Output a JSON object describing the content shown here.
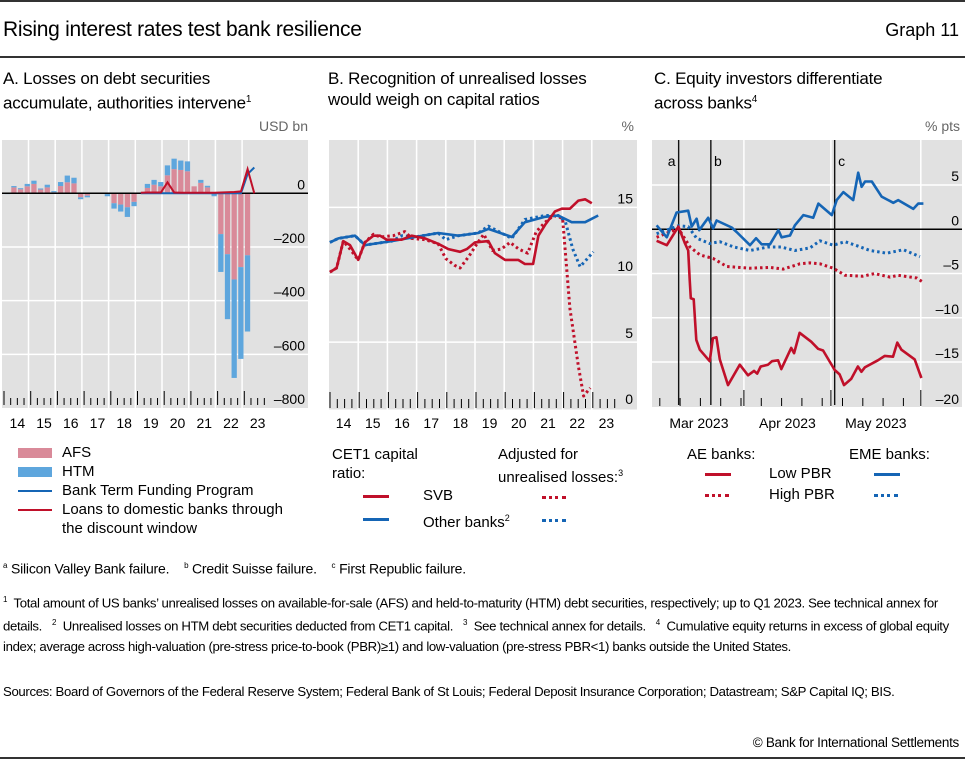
{
  "header": {
    "title": "Rising interest rates test bank resilience",
    "graph_number": "Graph 11"
  },
  "panels": {
    "a": {
      "title_line1": "A. Losses on debt securities",
      "title_line2": "accumulate, authorities intervene",
      "title_sup": "1",
      "unit": "USD bn"
    },
    "b": {
      "title_line1": "B. Recognition of unrealised losses",
      "title_line2": "would weigh on capital ratios",
      "unit": "%"
    },
    "c": {
      "title_line1": "C. Equity investors differentiate",
      "title_line2": "across banks",
      "title_sup": "4",
      "unit": "% pts"
    }
  },
  "legends": {
    "a": {
      "afs": "AFS",
      "htm": "HTM",
      "btfp": "Bank Term Funding Program",
      "dw_line1": "Loans to domestic banks through",
      "dw_line2": "the discount window"
    },
    "b": {
      "cet1_line1": "CET1 capital",
      "cet1_line2": "ratio:",
      "adj_line1": "Adjusted for",
      "adj_line2": "unrealised losses:",
      "adj_sup": "3",
      "svb": "SVB",
      "other": "Other banks",
      "other_sup": "2"
    },
    "c": {
      "ae": "AE banks:",
      "eme": "EME banks:",
      "low": "Low PBR",
      "high": "High PBR"
    }
  },
  "event_notes": {
    "a_mark": "a",
    "a_text": "Silicon Valley Bank failure.",
    "b_mark": "b",
    "b_text": "Credit Suisse failure.",
    "c_mark": "c",
    "c_text": "First Republic failure."
  },
  "footnotes": {
    "f1": "Total amount of US banks’ unrealised losses on available-for-sale (AFS) and held-to-maturity (HTM) debt securities, respectively; up to Q1 2023. See technical annex for details.",
    "f2": "Unrealised losses on HTM debt securities deducted from CET1 capital.",
    "f3": "See technical annex for details.",
    "f4": "Cumulative equity returns in excess of global equity index; average across high-valuation (pre-stress price-to-book (PBR)≥1) and low-valuation (pre-stress PBR<1) banks outside the United States.",
    "sources": "Sources: Board of Governors of the Federal Reserve System; Federal Bank of St Louis; Federal Deposit Insurance Corporation; Datastream; S&P Capital IQ; BIS."
  },
  "copyright": "© Bank for International Settlements",
  "colors": {
    "afs": "#d98a99",
    "htm": "#5ea6dd",
    "red": "#c0102a",
    "blue": "#1565b5",
    "plot_bg": "#e1e1e1",
    "grid": "#ffffff"
  },
  "chart_data": [
    {
      "id": "a",
      "type": "bar",
      "title": "A. Losses on debt securities accumulate, authorities intervene",
      "ylabel": "USD bn",
      "ylim": [
        -800,
        150
      ],
      "yticks": [
        0,
        -200,
        -400,
        -600,
        -800
      ],
      "ytick_labels": [
        "0",
        "–200",
        "–400",
        "–600",
        "–800"
      ],
      "x_start_year": 2014,
      "xtick_labels": [
        "14",
        "15",
        "16",
        "17",
        "18",
        "19",
        "20",
        "21",
        "22",
        "23"
      ],
      "grid": true,
      "stacked": true,
      "categories_note": "Quarterly, 2014 Q1 to 2023 Q1",
      "series": [
        {
          "name": "AFS",
          "kind": "bar",
          "values": [
            -1,
            22,
            15,
            26,
            35,
            14,
            22,
            4,
            27,
            41,
            37,
            -15,
            -9,
            0,
            2,
            -3,
            -37,
            -42,
            -52,
            -32,
            2,
            20,
            32,
            26,
            67,
            90,
            87,
            82,
            26,
            39,
            22,
            -2,
            -152,
            -227,
            -321,
            -275,
            -231
          ]
        },
        {
          "name": "HTM",
          "kind": "bar",
          "values": [
            -2,
            5,
            4,
            9,
            12,
            4,
            10,
            4,
            15,
            25,
            21,
            -7,
            -6,
            0,
            0,
            -8,
            -20,
            -26,
            -36,
            -16,
            1,
            15,
            18,
            16,
            37,
            39,
            35,
            37,
            0,
            11,
            6,
            -9,
            -141,
            -242,
            -367,
            -342,
            -284
          ]
        },
        {
          "name": "Bank Term Funding Program",
          "kind": "line",
          "start_index": 20,
          "values": [
            0,
            0,
            0,
            0,
            0,
            0,
            0,
            0,
            0,
            0,
            0,
            0,
            0,
            0,
            0,
            0,
            72,
            96
          ]
        },
        {
          "name": "Loans to domestic banks through the discount window",
          "kind": "line",
          "start_index": 20,
          "values": [
            2,
            3,
            3,
            3,
            41,
            3,
            2,
            2,
            2,
            2,
            2,
            2,
            3,
            4,
            5,
            7,
            90,
            0
          ]
        }
      ]
    },
    {
      "id": "b",
      "type": "line",
      "title": "B. Recognition of unrealised losses would weigh on capital ratios",
      "ylabel": "%",
      "ylim": [
        0,
        20
      ],
      "yticks": [
        0,
        5,
        10,
        15
      ],
      "xlim": [
        2014,
        2024
      ],
      "xtick_labels": [
        "14",
        "15",
        "16",
        "17",
        "18",
        "19",
        "20",
        "21",
        "22",
        "23"
      ],
      "grid": true,
      "series": [
        {
          "name": "SVB",
          "style": "solid",
          "color": "red",
          "x": [
            2014.03,
            2014.26,
            2014.49,
            2014.72,
            2015.0,
            2015.23,
            2015.52,
            2015.75,
            2015.98,
            2016.49,
            2016.83,
            2017.29,
            2017.74,
            2018.09,
            2018.49,
            2018.72,
            2019.0,
            2019.46,
            2019.68,
            2020.03,
            2020.48,
            2020.71,
            2020.99,
            2021.17,
            2021.4,
            2021.74,
            2021.97,
            2022.25,
            2022.54,
            2022.77,
            2023.0
          ],
          "y": [
            10.2,
            10.5,
            12.5,
            12.2,
            11.1,
            12.4,
            12.9,
            12.9,
            12.6,
            12.6,
            12.9,
            12.7,
            12.3,
            11.9,
            11.7,
            11.9,
            12.4,
            12.5,
            11.6,
            11.1,
            11.1,
            10.8,
            10.8,
            12.9,
            13.7,
            14.7,
            14.9,
            14.9,
            15.5,
            15.6,
            15.3
          ]
        },
        {
          "name": "Other banks",
          "style": "solid",
          "color": "blue",
          "x": [
            2014.03,
            2014.32,
            2014.89,
            2015.23,
            2016.15,
            2016.95,
            2017.74,
            2018.43,
            2019.11,
            2019.46,
            2020.26,
            2020.71,
            2021.4,
            2021.85,
            2022.31,
            2022.77,
            2023.22
          ],
          "y": [
            12.4,
            12.7,
            12.9,
            12.2,
            12.5,
            12.8,
            13.1,
            12.9,
            13.1,
            13.4,
            12.8,
            13.9,
            14.3,
            14.4,
            13.9,
            13.9,
            14.4
          ]
        },
        {
          "name": "SVB adjusted for unrealised losses",
          "style": "dotted",
          "color": "red",
          "x": [
            2014.03,
            2014.26,
            2014.49,
            2014.72,
            2015.0,
            2015.23,
            2015.52,
            2015.75,
            2016.2,
            2016.6,
            2016.83,
            2017.29,
            2017.74,
            2018.0,
            2018.3,
            2018.49,
            2018.8,
            2019.1,
            2019.3,
            2019.6,
            2019.9,
            2020.2,
            2020.5,
            2020.8,
            2021.1,
            2021.4,
            2021.7,
            2022.0,
            2022.25,
            2022.54,
            2022.72,
            2022.95
          ],
          "y": [
            10.2,
            10.5,
            12.5,
            11.9,
            11.1,
            12.4,
            13.0,
            12.8,
            12.9,
            13.2,
            12.7,
            12.6,
            12.3,
            11.2,
            10.7,
            10.5,
            11.4,
            12.4,
            13.0,
            11.8,
            11.9,
            12.4,
            11.9,
            11.6,
            13.2,
            13.9,
            14.4,
            14.2,
            7.5,
            3.2,
            1.0,
            1.6
          ]
        },
        {
          "name": "Other banks adjusted for unrealised losses",
          "style": "dotted",
          "color": "blue",
          "x": [
            2014.03,
            2014.32,
            2014.89,
            2015.23,
            2016.15,
            2016.5,
            2016.95,
            2017.74,
            2018.0,
            2018.43,
            2019.11,
            2019.46,
            2020.26,
            2020.71,
            2021.4,
            2021.85,
            2022.1,
            2022.35,
            2022.6,
            2022.85,
            2023.05
          ],
          "y": [
            12.4,
            12.7,
            12.9,
            12.2,
            12.5,
            12.9,
            12.8,
            13.1,
            12.6,
            12.9,
            13.1,
            13.6,
            12.7,
            14.1,
            14.4,
            14.4,
            13.9,
            11.9,
            10.6,
            11.2,
            11.7
          ]
        }
      ]
    },
    {
      "id": "c",
      "type": "line",
      "title": "C. Equity investors differentiate across banks",
      "ylabel": "% pts",
      "ylim": [
        -20,
        10
      ],
      "yticks": [
        5,
        0,
        -5,
        -10,
        -15,
        -20
      ],
      "ytick_labels": [
        "5",
        "0",
        "–5",
        "–10",
        "–15",
        "–20"
      ],
      "x_unit": "days since 1 Mar 2023",
      "xlim": [
        0,
        106
      ],
      "xtick_labels": [
        "Mar 2023",
        "Apr 2023",
        "May 2023"
      ],
      "month_starts": [
        0,
        31,
        61,
        92
      ],
      "events": [
        {
          "label": "a",
          "day": 8.5
        },
        {
          "label": "b",
          "day": 19.6
        },
        {
          "label": "c",
          "day": 62.3
        }
      ],
      "grid": true,
      "series": [
        {
          "name": "AE banks Low PBR",
          "style": "solid",
          "color": "red",
          "x": [
            0.9,
            4.4,
            8.4,
            10.7,
            11.8,
            12.3,
            12.7,
            13.7,
            14.6,
            15.8,
            19.2,
            20.3,
            21.5,
            22.7,
            25.5,
            29.6,
            32.4,
            34.5,
            35.6,
            36.8,
            39.3,
            40.7,
            42.8,
            43.9,
            47.3,
            48.3,
            50.2,
            54.2,
            56.6,
            58.3,
            62.3,
            64.0,
            65.5,
            68.0,
            70.3,
            71.5,
            72.7,
            77.2,
            79.6,
            82.4,
            83.9,
            85.3,
            89.9,
            92.2
          ],
          "y": [
            -1.3,
            -1.8,
            0.3,
            -1.6,
            -2.4,
            -5.7,
            -7.8,
            -7.9,
            -12.5,
            -13.6,
            -14.9,
            -12.3,
            -12.2,
            -14.7,
            -17.6,
            -15.3,
            -16.5,
            -16.0,
            -16.3,
            -15.5,
            -15.3,
            -14.9,
            -14.8,
            -15.8,
            -13.4,
            -14.0,
            -11.7,
            -12.7,
            -13.5,
            -13.7,
            -15.9,
            -16.4,
            -17.6,
            -16.9,
            -15.5,
            -16.1,
            -15.6,
            -14.8,
            -14.3,
            -14.4,
            -12.8,
            -13.6,
            -14.7,
            -16.8
          ]
        },
        {
          "name": "AE banks High PBR",
          "style": "dotted",
          "color": "red",
          "x": [
            0.9,
            8.4,
            12.4,
            15.9,
            20.4,
            25.1,
            33.1,
            40.0,
            44.6,
            50.3,
            53.8,
            57.2,
            61.8,
            65.9,
            72.0,
            76.0,
            81.4,
            84.2,
            90.6,
            92.4
          ],
          "y": [
            -0.9,
            0.1,
            -2.0,
            -2.9,
            -3.3,
            -4.2,
            -4.4,
            -4.3,
            -4.5,
            -3.9,
            -3.8,
            -3.9,
            -4.4,
            -5.2,
            -5.3,
            -5.0,
            -5.4,
            -5.2,
            -5.5,
            -5.9
          ]
        },
        {
          "name": "EME banks Low PBR",
          "style": "solid",
          "color": "blue",
          "x": [
            0.9,
            4.4,
            7.8,
            11.8,
            13.0,
            14.7,
            15.6,
            18.7,
            20.4,
            21.6,
            26.8,
            28.5,
            33.1,
            35.2,
            37.1,
            40.0,
            42.9,
            44.0,
            46.9,
            48.6,
            51.5,
            53.8,
            54.9,
            56.7,
            61.3,
            63.0,
            65.3,
            68.7,
            70.4,
            71.6,
            72.8,
            75.1,
            78.5,
            82.5,
            84.2,
            89.4,
            91.1,
            92.9
          ],
          "y": [
            0.45,
            -0.9,
            1.9,
            2.1,
            0.3,
            1.2,
            -0.1,
            1.3,
            0.1,
            1.0,
            0.2,
            -0.3,
            -1.8,
            -1.0,
            -1.7,
            -1.7,
            -0.1,
            -0.9,
            -0.7,
            0.45,
            1.6,
            1.4,
            1.3,
            2.9,
            1.6,
            3.3,
            4.2,
            3.3,
            6.4,
            4.8,
            5.4,
            5.4,
            3.7,
            3.0,
            3.3,
            2.3,
            2.9,
            2.9
          ]
        },
        {
          "name": "EME banks High PBR",
          "style": "dotted",
          "color": "blue",
          "x": [
            0.9,
            8.4,
            11.8,
            14.7,
            19.2,
            22.7,
            27.5,
            33.1,
            39.3,
            43.9,
            48.6,
            53.8,
            57.2,
            61.8,
            65.9,
            70.3,
            74.5,
            80.2,
            86.0,
            91.7
          ],
          "y": [
            -0.5,
            0.4,
            0.3,
            -1.0,
            -1.6,
            -1.4,
            -2.0,
            -2.4,
            -2.0,
            -2.0,
            -2.4,
            -2.1,
            -1.3,
            -1.8,
            -1.4,
            -1.9,
            -2.4,
            -2.7,
            -2.3,
            -3.1
          ]
        }
      ]
    }
  ]
}
